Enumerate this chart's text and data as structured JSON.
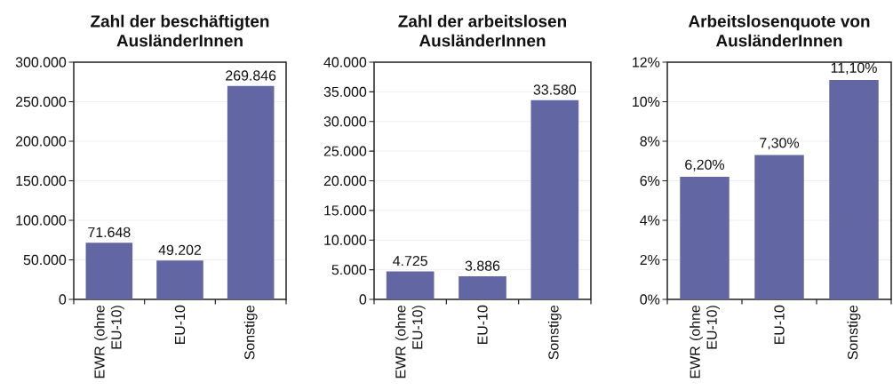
{
  "chart_data": [
    {
      "type": "bar",
      "title": "Zahl der beschäftigten AusländerInnen",
      "categories": [
        "EWR (ohne EU-10)",
        "EU-10",
        "Sonstige"
      ],
      "values": [
        71648,
        49202,
        269846
      ],
      "value_labels": [
        "71.648",
        "49.202",
        "269.846"
      ],
      "color": "#6266a2",
      "ylim": [
        0,
        300000
      ],
      "yticks": [
        0,
        {
          "value": 50000,
          "label": "50.000"
        },
        {
          "value": 100000,
          "label": "100.000"
        },
        {
          "value": 150000,
          "label": "150.000"
        },
        {
          "value": 200000,
          "label": "200.000"
        },
        {
          "value": 250000,
          "label": "250.000"
        },
        {
          "value": 300000,
          "label": "300.000"
        }
      ],
      "grid": "y"
    },
    {
      "type": "bar",
      "title": "Zahl der arbeitslosen AusländerInnen",
      "categories": [
        "EWR (ohne EU-10)",
        "EU-10",
        "Sonstige"
      ],
      "values": [
        4725,
        3886,
        33580
      ],
      "value_labels": [
        "4.725",
        "3.886",
        "33.580"
      ],
      "color": "#6266a2",
      "ylim": [
        0,
        40000
      ],
      "yticks": [
        0,
        {
          "value": 5000,
          "label": "5.000"
        },
        {
          "value": 10000,
          "label": "10.000"
        },
        {
          "value": 15000,
          "label": "15.000"
        },
        {
          "value": 20000,
          "label": "20.000"
        },
        {
          "value": 25000,
          "label": "25.000"
        },
        {
          "value": 30000,
          "label": "30.000"
        },
        {
          "value": 35000,
          "label": "35.000"
        },
        {
          "value": 40000,
          "label": "40.000"
        }
      ],
      "grid": "y"
    },
    {
      "type": "bar",
      "title": "Arbeitslosenquote von AusländerInnen",
      "categories": [
        "EWR (ohne EU-10)",
        "EU-10",
        "Sonstige"
      ],
      "values": [
        6.2,
        7.3,
        11.1
      ],
      "value_labels": [
        "6,20%",
        "7,30%",
        "11,10%"
      ],
      "color": "#6266a2",
      "ylim": [
        0,
        12
      ],
      "yticks": [
        {
          "value": 0,
          "label": "0%"
        },
        {
          "value": 2,
          "label": "2%"
        },
        {
          "value": 4,
          "label": "4%"
        },
        {
          "value": 6,
          "label": "6%"
        },
        {
          "value": 8,
          "label": "8%"
        },
        {
          "value": 10,
          "label": "10%"
        },
        {
          "value": 12,
          "label": "12%"
        }
      ],
      "grid": "y"
    }
  ]
}
